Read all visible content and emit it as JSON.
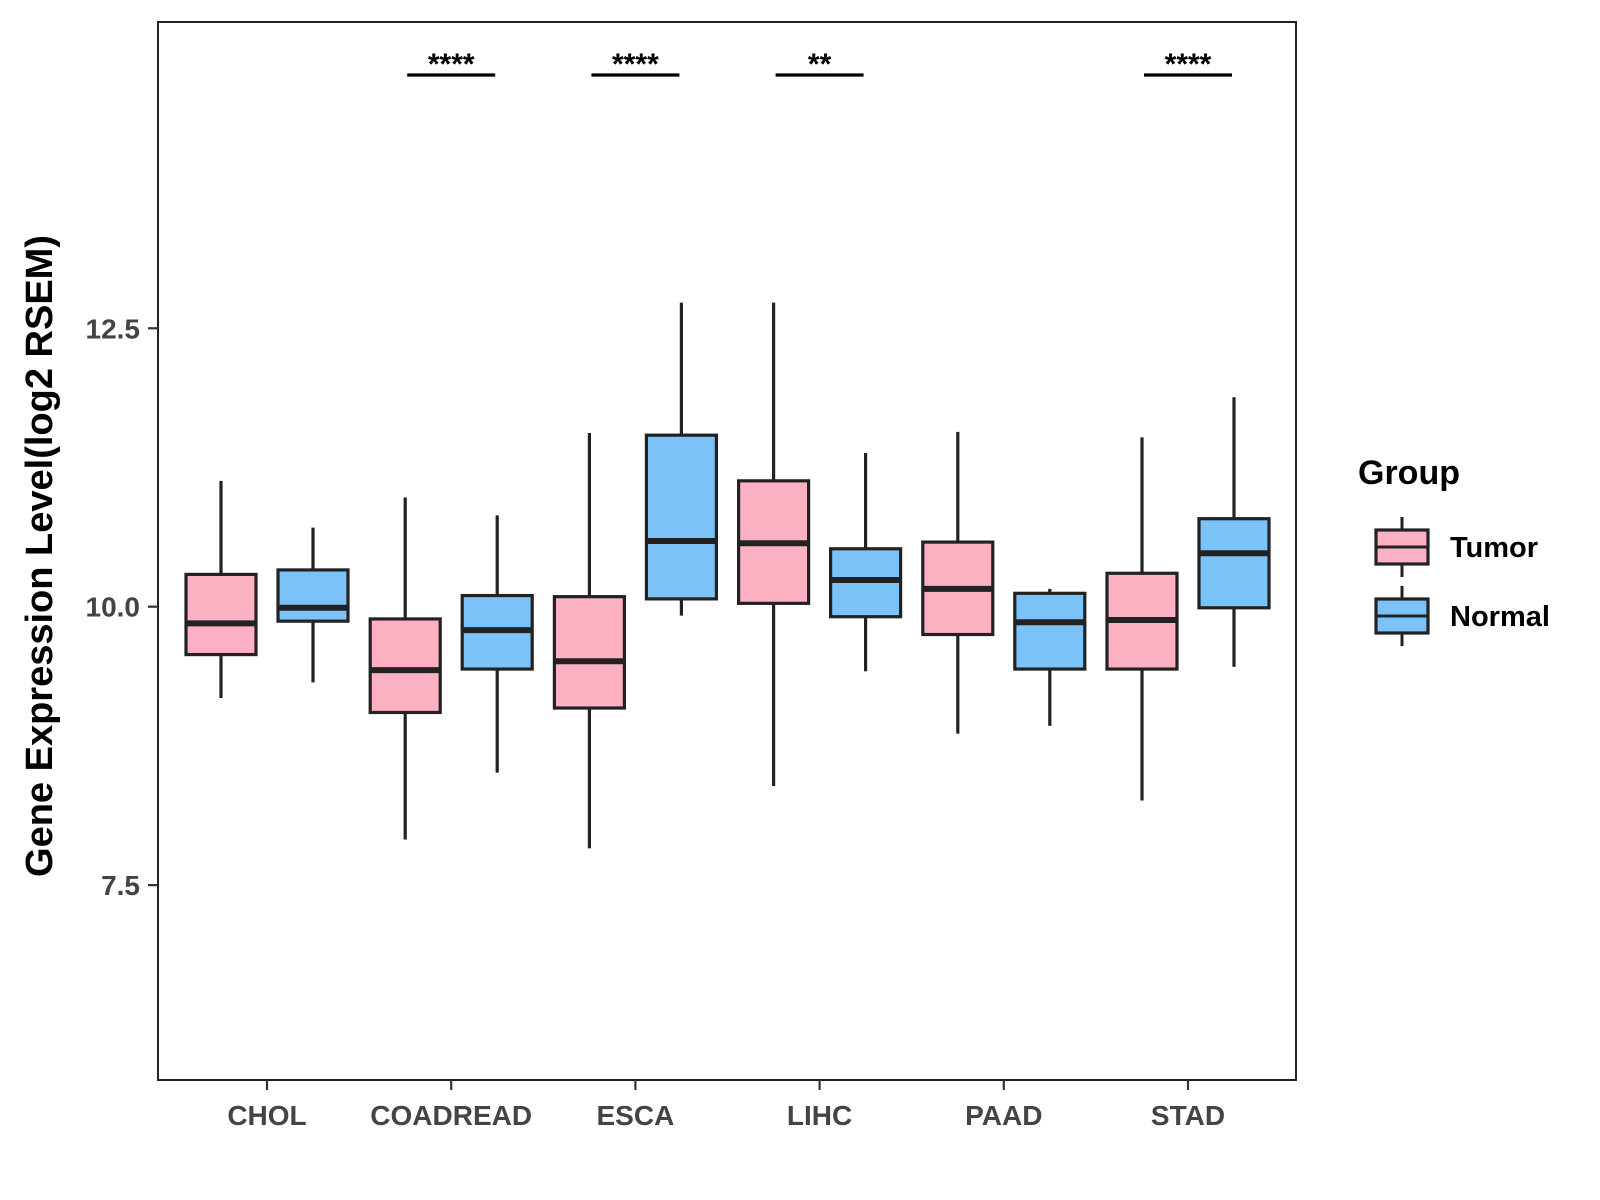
{
  "chart_data": {
    "type": "boxplot",
    "title": "",
    "xlabel": "",
    "ylabel": "Gene Expression Level(log2 RSEM)",
    "ylim": [
      5.75,
      15.25
    ],
    "yticks": [
      7.5,
      10.0,
      12.5
    ],
    "ytick_labels": [
      "7.5",
      "10.0",
      "12.5"
    ],
    "categories": [
      "CHOL",
      "COADREAD",
      "ESCA",
      "LIHC",
      "PAAD",
      "STAD"
    ],
    "legend": {
      "title": "Group",
      "position": "right",
      "entries": [
        {
          "name": "Tumor",
          "color": "#FBB1C2"
        },
        {
          "name": "Normal",
          "color": "#7AC2F8"
        }
      ]
    },
    "series": [
      {
        "name": "Tumor",
        "color": "#FBB1C2",
        "boxes": [
          {
            "min": 9.18,
            "q1": 9.57,
            "median": 9.85,
            "q3": 10.29,
            "max": 11.13
          },
          {
            "min": 7.91,
            "q1": 9.05,
            "median": 9.43,
            "q3": 9.89,
            "max": 10.98
          },
          {
            "min": 7.83,
            "q1": 9.09,
            "median": 9.51,
            "q3": 10.09,
            "max": 11.56
          },
          {
            "min": 8.39,
            "q1": 10.03,
            "median": 10.57,
            "q3": 11.13,
            "max": 12.73
          },
          {
            "min": 8.86,
            "q1": 9.75,
            "median": 10.16,
            "q3": 10.58,
            "max": 11.57
          },
          {
            "min": 8.26,
            "q1": 9.44,
            "median": 9.88,
            "q3": 10.3,
            "max": 11.52
          }
        ]
      },
      {
        "name": "Normal",
        "color": "#7AC2F8",
        "boxes": [
          {
            "min": 9.32,
            "q1": 9.87,
            "median": 9.99,
            "q3": 10.33,
            "max": 10.71
          },
          {
            "min": 8.51,
            "q1": 9.44,
            "median": 9.79,
            "q3": 10.1,
            "max": 10.82
          },
          {
            "min": 9.92,
            "q1": 10.07,
            "median": 10.59,
            "q3": 11.54,
            "max": 12.73
          },
          {
            "min": 9.42,
            "q1": 9.91,
            "median": 10.24,
            "q3": 10.52,
            "max": 11.38
          },
          {
            "min": 8.93,
            "q1": 9.44,
            "median": 9.86,
            "q3": 10.12,
            "max": 10.16
          },
          {
            "min": 9.46,
            "q1": 9.99,
            "median": 10.48,
            "q3": 10.79,
            "max": 11.88
          }
        ]
      }
    ],
    "significance": [
      {
        "category": "COADREAD",
        "label": "****"
      },
      {
        "category": "ESCA",
        "label": "****"
      },
      {
        "category": "LIHC",
        "label": "**"
      },
      {
        "category": "STAD",
        "label": "****"
      }
    ]
  }
}
